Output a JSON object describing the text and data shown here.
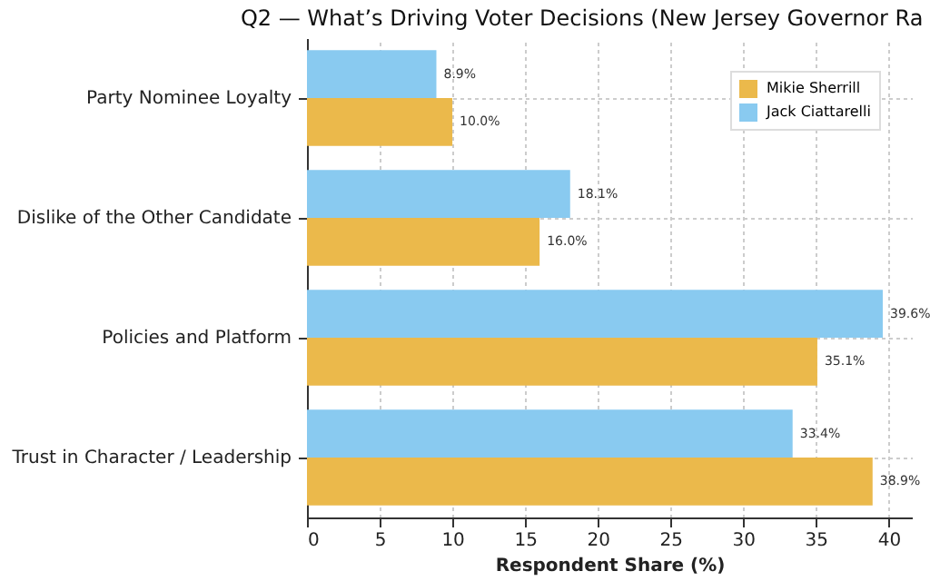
{
  "chart_data": {
    "type": "bar",
    "orientation": "horizontal",
    "title": "Q2 — What’s Driving Voter Decisions (New Jersey Governor Ra",
    "xlabel": "Respondent Share (%)",
    "categories": [
      "Party Nominee Loyalty",
      "Dislike of the Other Candidate",
      "Policies and Platform",
      "Trust in Character / Leadership"
    ],
    "series": [
      {
        "name": "Mikie Sherrill",
        "color": "#ebb94b",
        "values": [
          10.0,
          16.0,
          35.1,
          38.9
        ],
        "value_labels": [
          "10.0%",
          "16.0%",
          "35.1%",
          "38.9%"
        ]
      },
      {
        "name": "Jack Ciattarelli",
        "color": "#89caf0",
        "values": [
          8.9,
          18.1,
          39.6,
          33.4
        ],
        "value_labels": [
          "8.9%",
          "18.1%",
          "39.6%",
          "33.4%"
        ]
      }
    ],
    "xlim": [
      0,
      41.6
    ],
    "xticks": [
      0,
      5,
      10,
      15,
      20,
      25,
      30,
      35,
      40
    ],
    "grid": true,
    "legend": "top right"
  }
}
